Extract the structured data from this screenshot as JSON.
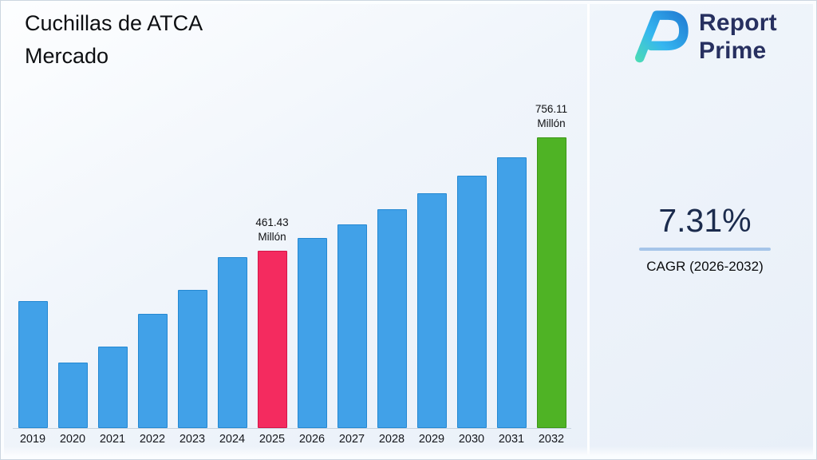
{
  "header": {
    "title_line1": "Cuchillas de ATCA",
    "title_line2": "Mercado"
  },
  "logo": {
    "name_line1": "Report",
    "name_line2": "Prime"
  },
  "stats": {
    "cagr_value": "7.31%",
    "cagr_label": "CAGR (2026-2032)"
  },
  "chart_data": {
    "type": "bar",
    "title": "Cuchillas de ATCA Mercado",
    "unit": "Millón",
    "categories": [
      "2019",
      "2020",
      "2021",
      "2022",
      "2023",
      "2024",
      "2025",
      "2026",
      "2027",
      "2028",
      "2029",
      "2030",
      "2031",
      "2032"
    ],
    "values": [
      330,
      170,
      212,
      297,
      360,
      445,
      461.43,
      495,
      531,
      570,
      612,
      657,
      705,
      756.11
    ],
    "annotations": [
      {
        "category": "2025",
        "index": 6,
        "lines": [
          "461.43",
          "Millón"
        ]
      },
      {
        "category": "2032",
        "index": 13,
        "lines": [
          "756.11",
          "Millón"
        ]
      }
    ],
    "ylim": [
      0,
      790
    ],
    "grid": false,
    "legend": false,
    "bar_colors": [
      "#41a1e8",
      "#41a1e8",
      "#41a1e8",
      "#41a1e8",
      "#41a1e8",
      "#41a1e8",
      "#f42b5f",
      "#41a1e8",
      "#41a1e8",
      "#41a1e8",
      "#41a1e8",
      "#41a1e8",
      "#41a1e8",
      "#4fb325"
    ],
    "bar_border_colors": [
      "#2488d2",
      "#2488d2",
      "#2488d2",
      "#2488d2",
      "#2488d2",
      "#2488d2",
      "#d41548",
      "#2488d2",
      "#2488d2",
      "#2488d2",
      "#2488d2",
      "#2488d2",
      "#2488d2",
      "#3c9718"
    ]
  },
  "colors": {
    "accent_blue": "#41a1e8",
    "highlight_pink": "#f42b5f",
    "highlight_green": "#4fb325",
    "underline_blue": "#a6c5e9",
    "navy_text": "#1b2b4d"
  }
}
